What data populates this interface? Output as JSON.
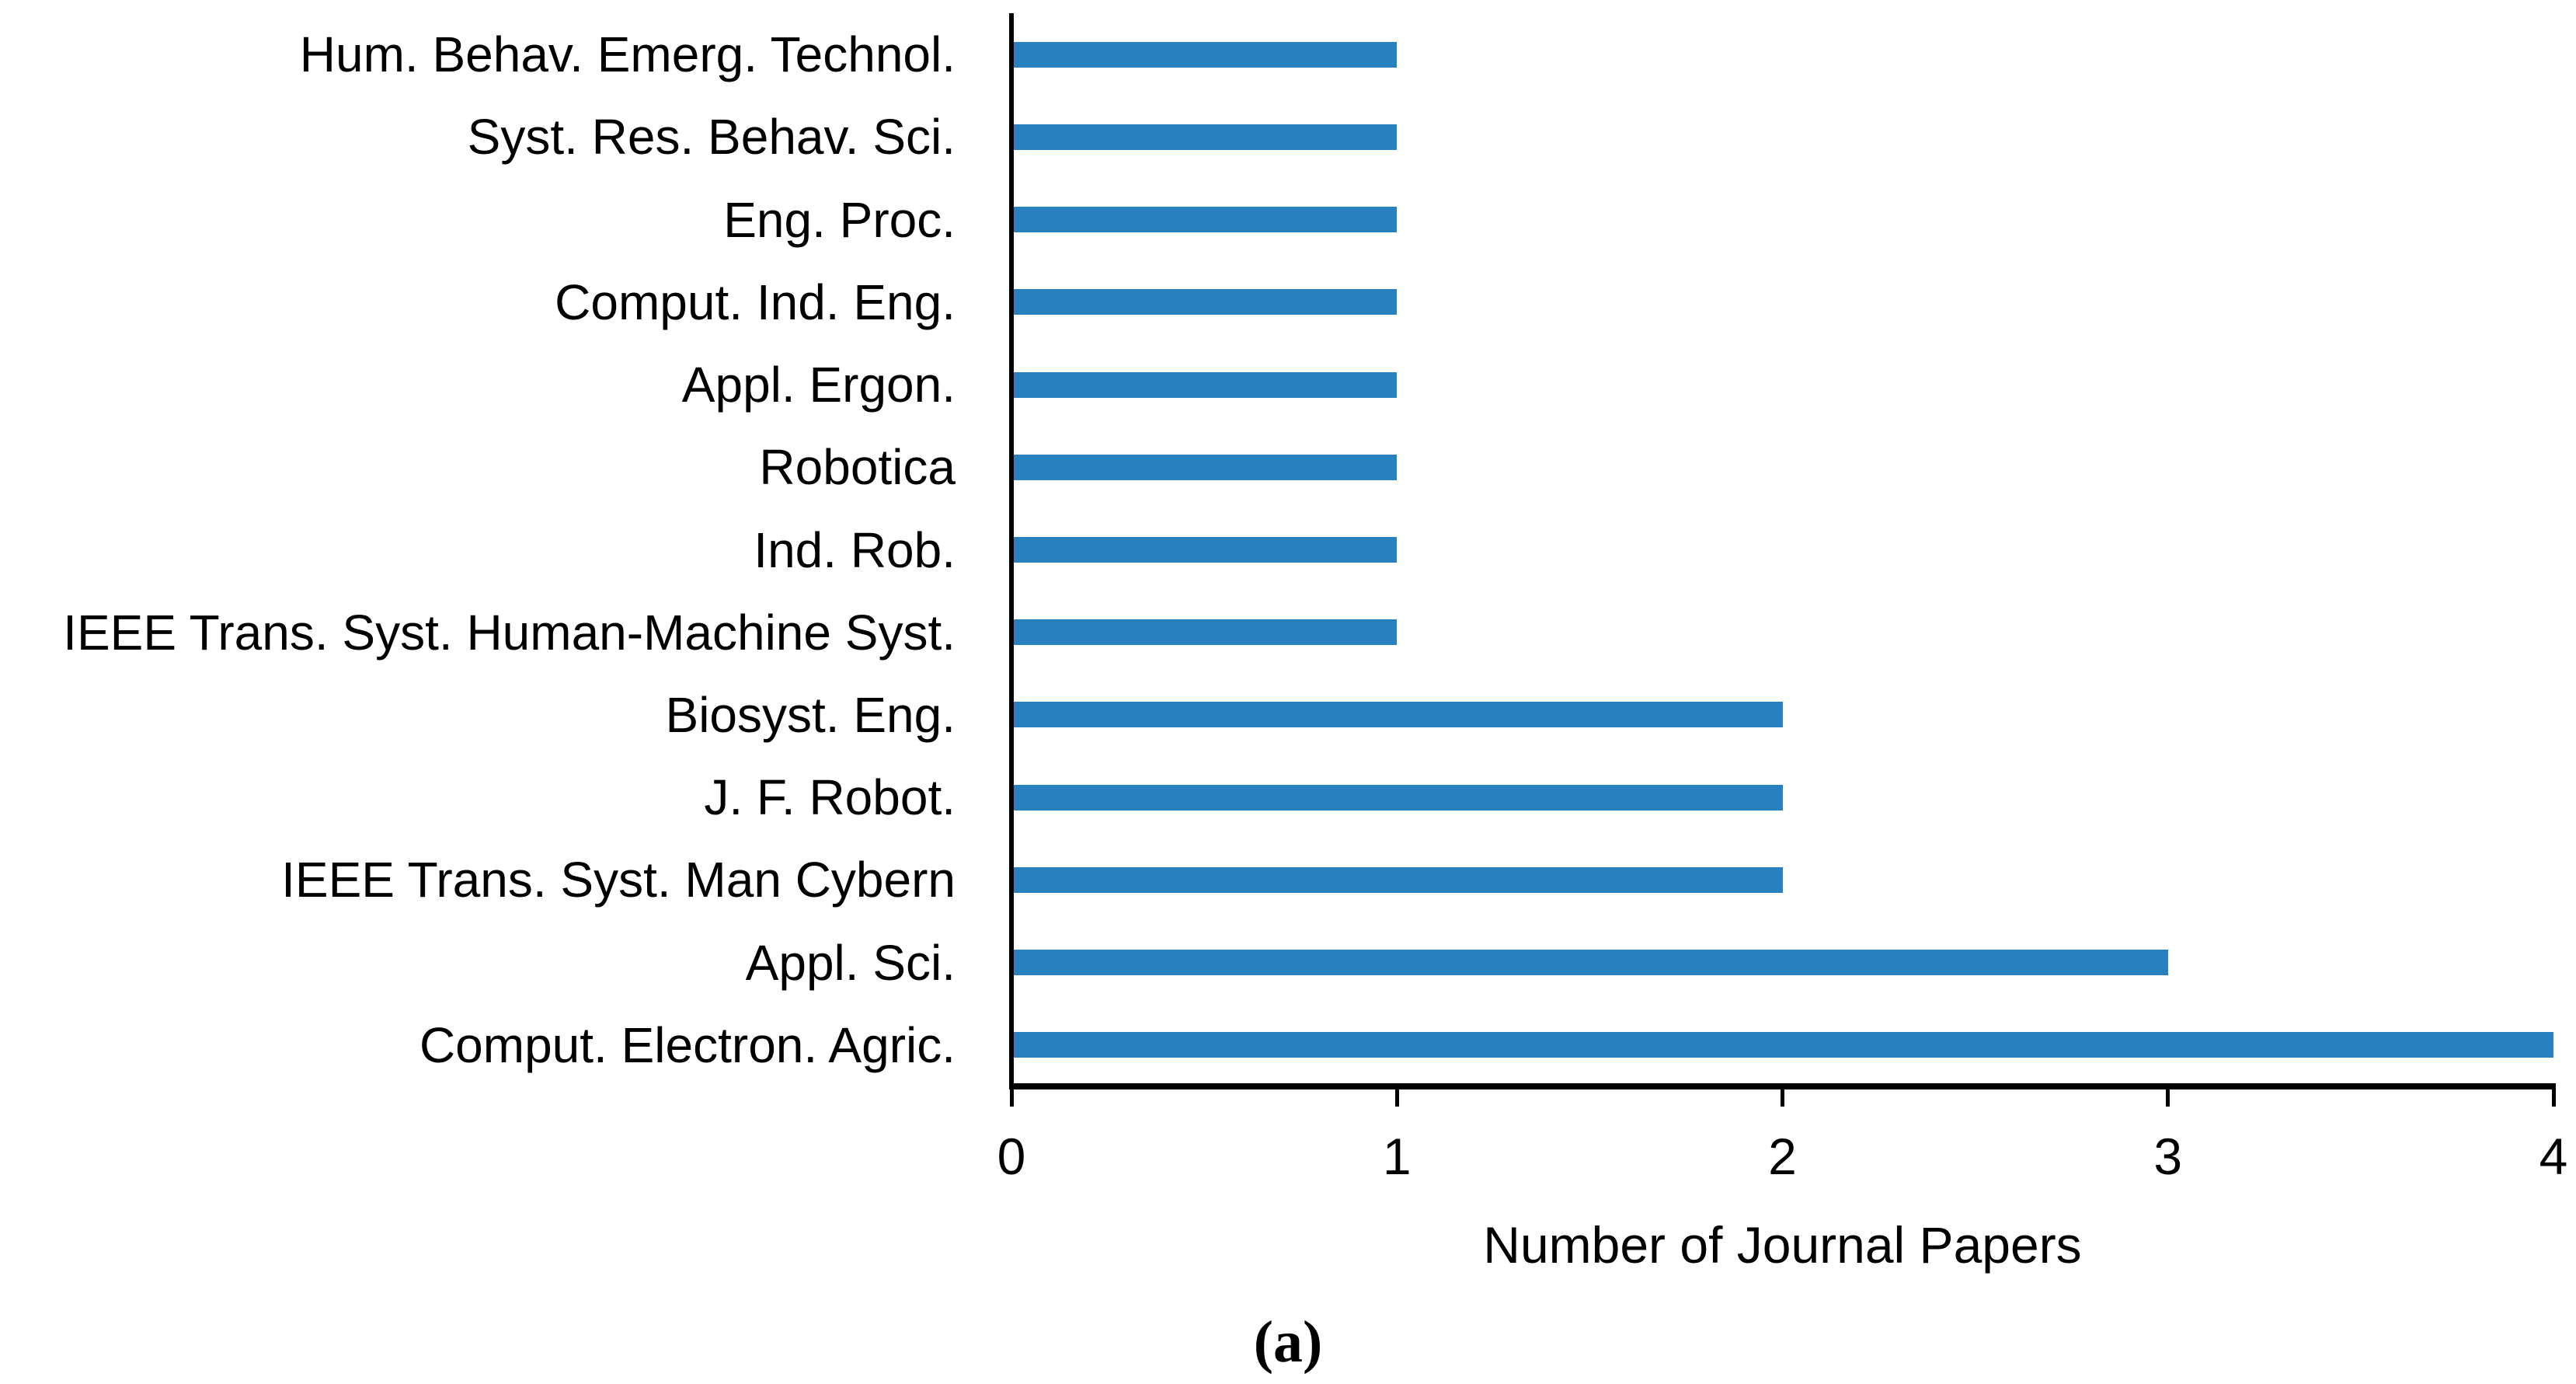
{
  "caption": "(a)",
  "chart_data": {
    "type": "bar",
    "orientation": "horizontal",
    "title": "",
    "xlabel": "Number of Journal Papers",
    "ylabel": "",
    "xlim": [
      0,
      4
    ],
    "xticks": [
      "0",
      "1",
      "2",
      "3",
      "4"
    ],
    "grid": false,
    "legend": false,
    "bar_color": "#2880BE",
    "axis_color": "#000000",
    "text_color": "#000000",
    "categories": [
      "Hum. Behav. Emerg. Technol.",
      "Syst. Res. Behav. Sci.",
      "Eng. Proc.",
      "Comput. Ind. Eng.",
      "Appl. Ergon.",
      "Robotica",
      "Ind. Rob.",
      "IEEE Trans. Syst. Human-Machine Syst.",
      "Biosyst. Eng.",
      "J. F. Robot.",
      "IEEE Trans. Syst. Man Cybern",
      "Appl. Sci.",
      "Comput. Electron. Agric."
    ],
    "values": [
      1,
      1,
      1,
      1,
      1,
      1,
      1,
      1,
      2,
      2,
      2,
      3,
      4
    ]
  }
}
